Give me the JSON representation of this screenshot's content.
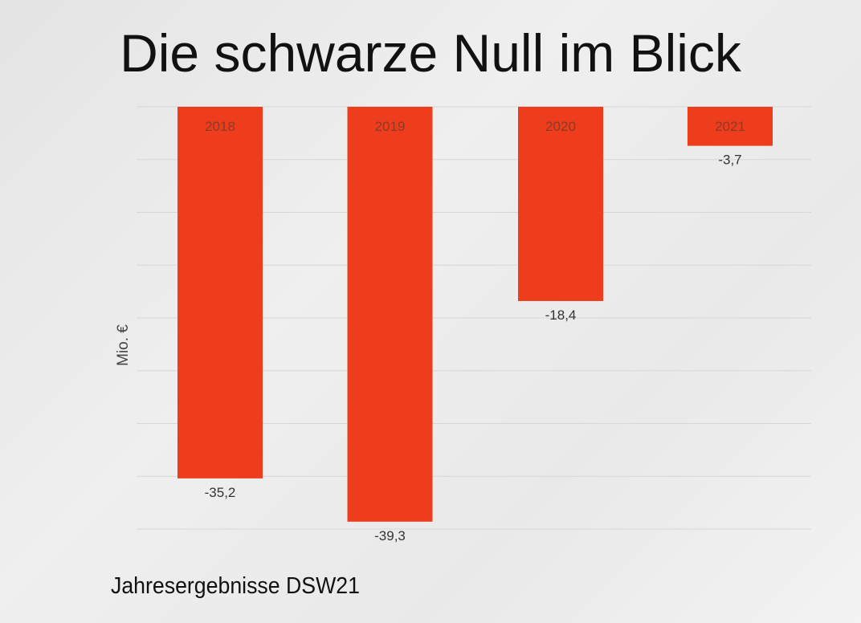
{
  "title": "Die schwarze Null im Blick",
  "footer": "Jahresergebnisse DSW21",
  "chart_data": {
    "type": "bar",
    "title": "Die schwarze Null im Blick",
    "xlabel": "",
    "ylabel": "Mio. €",
    "categories": [
      "2018",
      "2019",
      "2020",
      "2021"
    ],
    "values": [
      -35.2,
      -39.3,
      -18.4,
      -3.7
    ],
    "value_labels": [
      "-35,2",
      "-39,3",
      "-18,4",
      "-3,7"
    ],
    "ylim": [
      -40,
      0
    ],
    "grid_step": 5,
    "grid": true,
    "bar_color": "#ee3d1d"
  }
}
